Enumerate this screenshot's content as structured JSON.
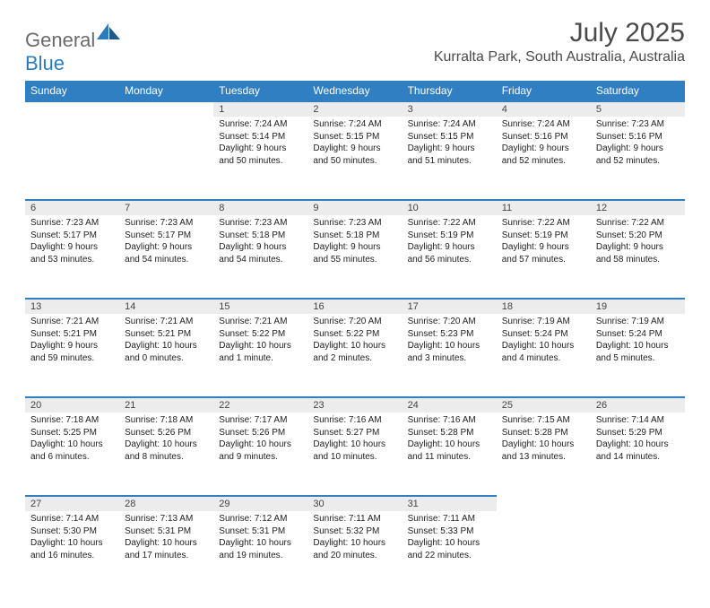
{
  "brand": {
    "part1": "General",
    "part2": "Blue"
  },
  "title": "July 2025",
  "location": "Kurralta Park, South Australia, Australia",
  "header_bg": "#2f7fc2",
  "daynum_bg": "#ececec",
  "dayHeaders": [
    "Sunday",
    "Monday",
    "Tuesday",
    "Wednesday",
    "Thursday",
    "Friday",
    "Saturday"
  ],
  "weeks": [
    [
      null,
      null,
      {
        "n": "1",
        "sr": "7:24 AM",
        "ss": "5:14 PM",
        "dl": "9 hours and 50 minutes."
      },
      {
        "n": "2",
        "sr": "7:24 AM",
        "ss": "5:15 PM",
        "dl": "9 hours and 50 minutes."
      },
      {
        "n": "3",
        "sr": "7:24 AM",
        "ss": "5:15 PM",
        "dl": "9 hours and 51 minutes."
      },
      {
        "n": "4",
        "sr": "7:24 AM",
        "ss": "5:16 PM",
        "dl": "9 hours and 52 minutes."
      },
      {
        "n": "5",
        "sr": "7:23 AM",
        "ss": "5:16 PM",
        "dl": "9 hours and 52 minutes."
      }
    ],
    [
      {
        "n": "6",
        "sr": "7:23 AM",
        "ss": "5:17 PM",
        "dl": "9 hours and 53 minutes."
      },
      {
        "n": "7",
        "sr": "7:23 AM",
        "ss": "5:17 PM",
        "dl": "9 hours and 54 minutes."
      },
      {
        "n": "8",
        "sr": "7:23 AM",
        "ss": "5:18 PM",
        "dl": "9 hours and 54 minutes."
      },
      {
        "n": "9",
        "sr": "7:23 AM",
        "ss": "5:18 PM",
        "dl": "9 hours and 55 minutes."
      },
      {
        "n": "10",
        "sr": "7:22 AM",
        "ss": "5:19 PM",
        "dl": "9 hours and 56 minutes."
      },
      {
        "n": "11",
        "sr": "7:22 AM",
        "ss": "5:19 PM",
        "dl": "9 hours and 57 minutes."
      },
      {
        "n": "12",
        "sr": "7:22 AM",
        "ss": "5:20 PM",
        "dl": "9 hours and 58 minutes."
      }
    ],
    [
      {
        "n": "13",
        "sr": "7:21 AM",
        "ss": "5:21 PM",
        "dl": "9 hours and 59 minutes."
      },
      {
        "n": "14",
        "sr": "7:21 AM",
        "ss": "5:21 PM",
        "dl": "10 hours and 0 minutes."
      },
      {
        "n": "15",
        "sr": "7:21 AM",
        "ss": "5:22 PM",
        "dl": "10 hours and 1 minute."
      },
      {
        "n": "16",
        "sr": "7:20 AM",
        "ss": "5:22 PM",
        "dl": "10 hours and 2 minutes."
      },
      {
        "n": "17",
        "sr": "7:20 AM",
        "ss": "5:23 PM",
        "dl": "10 hours and 3 minutes."
      },
      {
        "n": "18",
        "sr": "7:19 AM",
        "ss": "5:24 PM",
        "dl": "10 hours and 4 minutes."
      },
      {
        "n": "19",
        "sr": "7:19 AM",
        "ss": "5:24 PM",
        "dl": "10 hours and 5 minutes."
      }
    ],
    [
      {
        "n": "20",
        "sr": "7:18 AM",
        "ss": "5:25 PM",
        "dl": "10 hours and 6 minutes."
      },
      {
        "n": "21",
        "sr": "7:18 AM",
        "ss": "5:26 PM",
        "dl": "10 hours and 8 minutes."
      },
      {
        "n": "22",
        "sr": "7:17 AM",
        "ss": "5:26 PM",
        "dl": "10 hours and 9 minutes."
      },
      {
        "n": "23",
        "sr": "7:16 AM",
        "ss": "5:27 PM",
        "dl": "10 hours and 10 minutes."
      },
      {
        "n": "24",
        "sr": "7:16 AM",
        "ss": "5:28 PM",
        "dl": "10 hours and 11 minutes."
      },
      {
        "n": "25",
        "sr": "7:15 AM",
        "ss": "5:28 PM",
        "dl": "10 hours and 13 minutes."
      },
      {
        "n": "26",
        "sr": "7:14 AM",
        "ss": "5:29 PM",
        "dl": "10 hours and 14 minutes."
      }
    ],
    [
      {
        "n": "27",
        "sr": "7:14 AM",
        "ss": "5:30 PM",
        "dl": "10 hours and 16 minutes."
      },
      {
        "n": "28",
        "sr": "7:13 AM",
        "ss": "5:31 PM",
        "dl": "10 hours and 17 minutes."
      },
      {
        "n": "29",
        "sr": "7:12 AM",
        "ss": "5:31 PM",
        "dl": "10 hours and 19 minutes."
      },
      {
        "n": "30",
        "sr": "7:11 AM",
        "ss": "5:32 PM",
        "dl": "10 hours and 20 minutes."
      },
      {
        "n": "31",
        "sr": "7:11 AM",
        "ss": "5:33 PM",
        "dl": "10 hours and 22 minutes."
      },
      null,
      null
    ]
  ],
  "labels": {
    "sunrise": "Sunrise:",
    "sunset": "Sunset:",
    "daylight": "Daylight:"
  }
}
